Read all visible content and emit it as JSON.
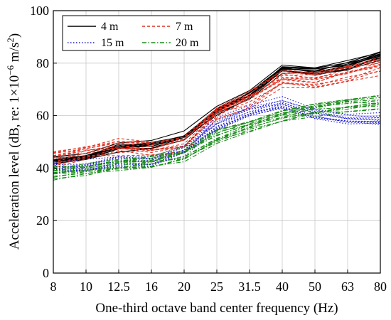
{
  "chart_data": {
    "type": "line",
    "title": "",
    "xlabel": "One-third octave band center frequency (Hz)",
    "ylabel_prefix": "Acceleration level (dB, re: 1×10",
    "ylabel_exponent": "−6",
    "ylabel_suffix": " m/s",
    "ylabel_suffix_exponent": "2",
    "ylabel_close": ")",
    "categories": [
      "8",
      "10",
      "12.5",
      "16",
      "20",
      "25",
      "31.5",
      "40",
      "50",
      "63",
      "80"
    ],
    "yticks": [
      "0",
      "20",
      "40",
      "60",
      "80",
      "100"
    ],
    "ylim": [
      0,
      100
    ],
    "grid": true,
    "legend_position": "top-left",
    "series": [
      {
        "name": "4 m",
        "color": "#000000",
        "dash": "solid",
        "count": 12,
        "values": [
          43,
          44,
          48,
          49,
          52,
          62,
          68,
          78,
          77,
          79,
          83
        ],
        "spread": 1.8
      },
      {
        "name": "7 m",
        "color": "#e03020",
        "dash": "dashed",
        "count": 14,
        "values": [
          43,
          46,
          48,
          47,
          49,
          61,
          66,
          74,
          73,
          76,
          79
        ],
        "spread": 2.8
      },
      {
        "name": "15 m",
        "color": "#1a1acc",
        "dash": "dotted",
        "count": 12,
        "values": [
          40,
          41,
          43,
          43,
          47,
          57,
          62,
          65,
          61,
          59,
          59
        ],
        "spread": 1.8
      },
      {
        "name": "20 m",
        "color": "#1a8c1a",
        "dash": "dashdot",
        "count": 14,
        "values": [
          38,
          39,
          41,
          42,
          45,
          52,
          56,
          60,
          62,
          64,
          65
        ],
        "spread": 2.2
      }
    ]
  }
}
